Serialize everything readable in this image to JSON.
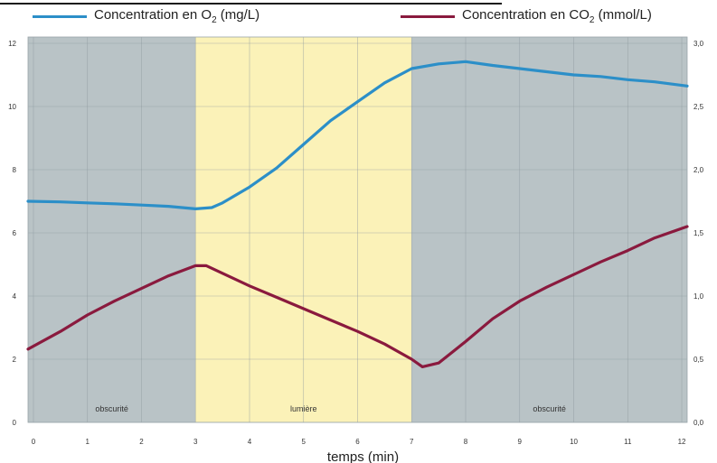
{
  "chart_data": {
    "type": "line",
    "xlabel": "temps (min)",
    "x_ticks": [
      "0",
      "1",
      "2",
      "3",
      "4",
      "5",
      "6",
      "7",
      "8",
      "9",
      "10",
      "11",
      "12"
    ],
    "xlim": [
      -0.1,
      12.1
    ],
    "y_left": {
      "ticks": [
        "0",
        "2",
        "4",
        "6",
        "8",
        "10",
        "12"
      ],
      "lim": [
        0,
        12.2
      ]
    },
    "y_right": {
      "ticks": [
        "0,0",
        "0,5",
        "1,0",
        "1,5",
        "2,0",
        "2,5",
        "3,0"
      ],
      "lim": [
        0,
        3.05
      ]
    },
    "grid": true,
    "legend_position": "top",
    "regions": [
      {
        "label": "obscurité",
        "from": -0.1,
        "to": 3,
        "color": "#b9c3c6"
      },
      {
        "label": "lumière",
        "from": 3,
        "to": 7,
        "color": "#fbf2b8"
      },
      {
        "label": "obscurité",
        "from": 7,
        "to": 12.1,
        "color": "#b9c3c6"
      }
    ],
    "series": [
      {
        "name": "Concentration en O₂ (mg/L)",
        "axis": "left",
        "color": "#2c8fc8",
        "x": [
          -0.1,
          0.5,
          1,
          1.5,
          2,
          2.5,
          3,
          3.3,
          3.5,
          4,
          4.5,
          5,
          5.5,
          6,
          6.5,
          7,
          7.5,
          8,
          8.5,
          9,
          9.5,
          10,
          10.5,
          11,
          11.5,
          12.1
        ],
        "y": [
          7.0,
          6.98,
          6.95,
          6.92,
          6.88,
          6.84,
          6.76,
          6.8,
          6.95,
          7.45,
          8.05,
          8.8,
          9.55,
          10.15,
          10.75,
          11.2,
          11.35,
          11.42,
          11.3,
          11.2,
          11.1,
          11.0,
          10.95,
          10.85,
          10.78,
          10.65
        ]
      },
      {
        "name": "Concentration en CO₂ (mmol/L)",
        "axis": "right",
        "color": "#8a1a3e",
        "x": [
          -0.1,
          0.5,
          1,
          1.5,
          2,
          2.5,
          3,
          3.2,
          3.5,
          4,
          4.5,
          5,
          5.5,
          6,
          6.5,
          7,
          7.2,
          7.5,
          8,
          8.5,
          9,
          9.5,
          10,
          10.5,
          11,
          11.5,
          12.1
        ],
        "y": [
          0.58,
          0.72,
          0.85,
          0.96,
          1.06,
          1.16,
          1.24,
          1.24,
          1.18,
          1.08,
          0.99,
          0.9,
          0.81,
          0.72,
          0.62,
          0.5,
          0.44,
          0.47,
          0.64,
          0.82,
          0.96,
          1.07,
          1.17,
          1.27,
          1.36,
          1.46,
          1.55
        ]
      }
    ]
  },
  "legend": {
    "o2": {
      "prefix": "Concentration en O",
      "sub": "2",
      "suffix": " (mg/L)"
    },
    "co2": {
      "prefix": "Concentration en CO",
      "sub": "2",
      "suffix": " (mmol/L)"
    }
  }
}
